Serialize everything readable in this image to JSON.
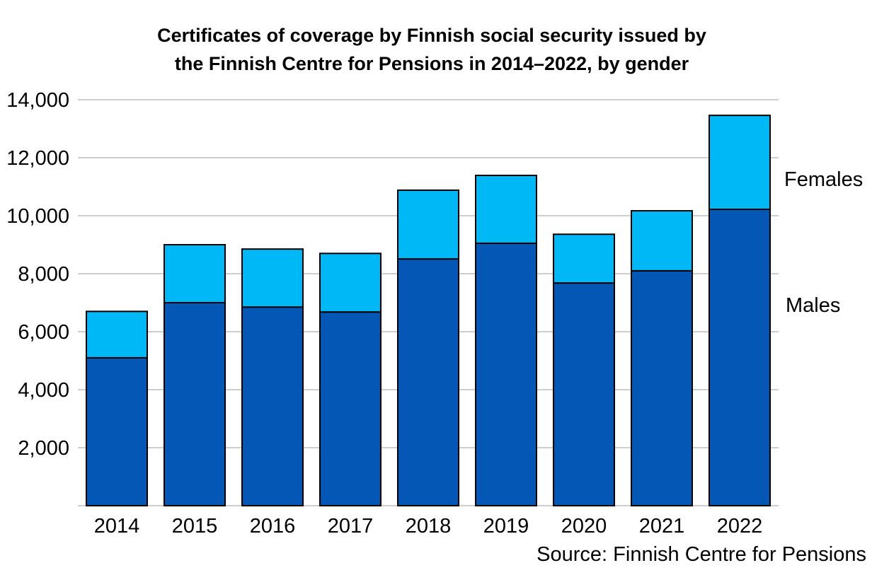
{
  "chart_data": {
    "type": "bar",
    "stacked": true,
    "title": "Certificates of coverage by Finnish social security issued by the Finnish Centre for Pensions in 2014–2022, by gender",
    "title_lines": [
      "Certificates of coverage by Finnish social security issued by",
      "the Finnish Centre for Pensions in 2014–2022, by gender"
    ],
    "categories": [
      "2014",
      "2015",
      "2016",
      "2017",
      "2018",
      "2019",
      "2020",
      "2021",
      "2022"
    ],
    "series": [
      {
        "name": "Males",
        "color": "#0457b4",
        "values": [
          5100,
          7000,
          6850,
          6680,
          8510,
          9050,
          7680,
          8100,
          10220
        ]
      },
      {
        "name": "Females",
        "color": "#00b8f5",
        "values": [
          1600,
          2000,
          2000,
          2020,
          2370,
          2340,
          1680,
          2070,
          3240
        ]
      }
    ],
    "ylim": [
      0,
      14000
    ],
    "yticks": [
      "2,000",
      "4,000",
      "6,000",
      "8,000",
      "10,000",
      "12,000",
      "14,000"
    ],
    "grid": true,
    "legend": "right, labels beside last bar",
    "source": "Source: Finnish Centre for Pensions"
  }
}
